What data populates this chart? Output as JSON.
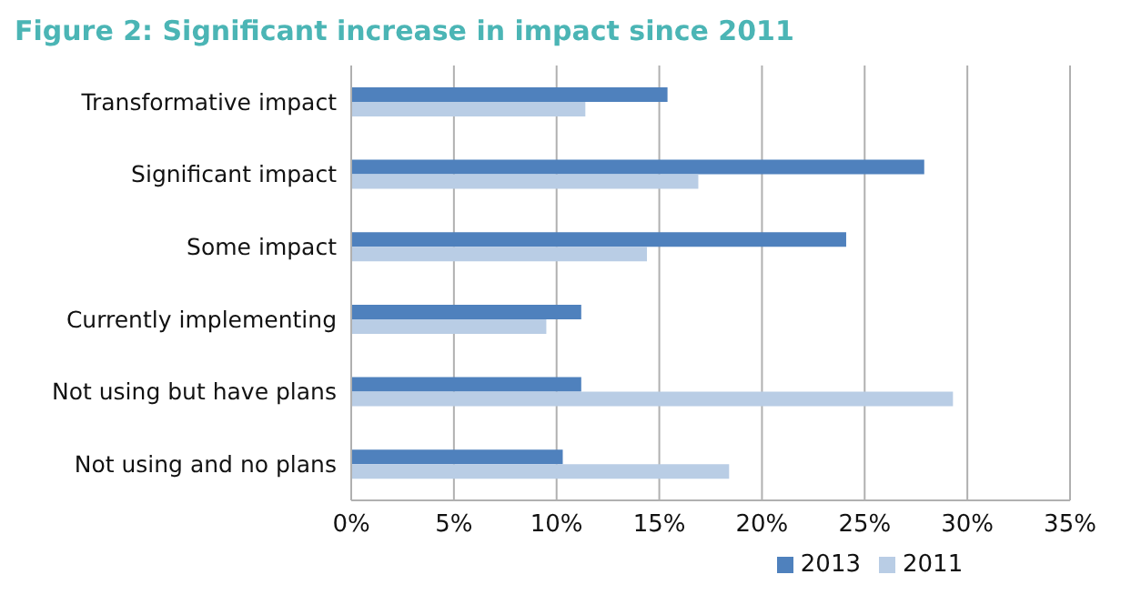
{
  "chart_data": {
    "type": "bar",
    "orientation": "horizontal",
    "title": "Figure 2: Significant increase in impact since 2011",
    "categories": [
      "Transformative impact",
      "Significant impact",
      "Some impact",
      "Currently implementing",
      "Not using but have plans",
      "Not using and no plans"
    ],
    "series": [
      {
        "name": "2013",
        "color": "#4f81bd",
        "values": [
          15.4,
          27.9,
          24.1,
          11.2,
          11.2,
          10.3
        ]
      },
      {
        "name": "2011",
        "color": "#b9cde5",
        "values": [
          11.4,
          16.9,
          14.4,
          9.5,
          29.3,
          18.4
        ]
      }
    ],
    "xlim": [
      0,
      35
    ],
    "xticks": [
      {
        "value": 0,
        "label": "0%"
      },
      {
        "value": 5,
        "label": "5%"
      },
      {
        "value": 10,
        "label": "10%"
      },
      {
        "value": 15,
        "label": "15%"
      },
      {
        "value": 20,
        "label": "20%"
      },
      {
        "value": 25,
        "label": "25%"
      },
      {
        "value": 30,
        "label": "30%"
      },
      {
        "value": 35,
        "label": "35%"
      }
    ],
    "grid": "x",
    "legend": "bottom"
  }
}
